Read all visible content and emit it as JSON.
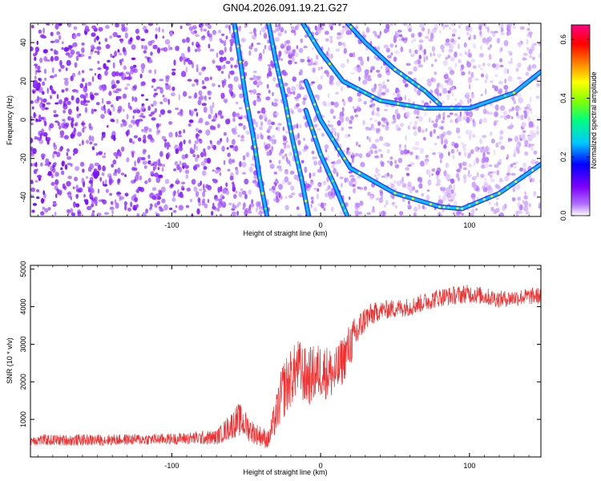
{
  "title": "GN04.2026.091.19.21.G27",
  "chart_data": [
    {
      "type": "heatmap",
      "title": "GN04.2026.091.19.21.G27",
      "xlabel": "Height of straight line (km)",
      "ylabel": "Frequency (Hz)",
      "xlim": [
        -195,
        148
      ],
      "ylim": [
        -50,
        50
      ],
      "xticks": [
        -100,
        0,
        100
      ],
      "yticks": [
        -40,
        -20,
        0,
        20,
        40
      ],
      "colorbar": {
        "label": "Normalized spectral amplitude",
        "range": [
          0.0,
          0.65
        ],
        "ticks": [
          0.0,
          0.2,
          0.4,
          0.6
        ],
        "colormap": [
          "#ffffff",
          "#7f00ff",
          "#0000ff",
          "#00c8ff",
          "#00ff80",
          "#80ff00",
          "#ffff00",
          "#ff8000",
          "#ff0000",
          "#ff00a0"
        ]
      },
      "tracks": [
        {
          "name": "track-1",
          "points": [
            [
              -58,
              50
            ],
            [
              -54,
              30
            ],
            [
              -50,
              10
            ],
            [
              -45,
              -10
            ],
            [
              -41,
              -30
            ],
            [
              -36,
              -50
            ]
          ]
        },
        {
          "name": "track-2",
          "points": [
            [
              -35,
              50
            ],
            [
              -30,
              30
            ],
            [
              -24,
              10
            ],
            [
              -19,
              -10
            ],
            [
              -13,
              -30
            ],
            [
              -8,
              -50
            ]
          ]
        },
        {
          "name": "track-3",
          "points": [
            [
              -12,
              50
            ],
            [
              0,
              35
            ],
            [
              15,
              20
            ],
            [
              40,
              10
            ],
            [
              70,
              6
            ],
            [
              100,
              6
            ],
            [
              130,
              14
            ],
            [
              148,
              25
            ]
          ]
        },
        {
          "name": "track-4",
          "points": [
            [
              -10,
              20
            ],
            [
              0,
              0
            ],
            [
              20,
              -25
            ],
            [
              50,
              -38
            ],
            [
              80,
              -45
            ],
            [
              95,
              -46
            ],
            [
              120,
              -38
            ],
            [
              148,
              -23
            ]
          ]
        },
        {
          "name": "track-5",
          "points": [
            [
              -10,
              5
            ],
            [
              0,
              -18
            ],
            [
              10,
              -35
            ],
            [
              18,
              -50
            ]
          ]
        },
        {
          "name": "track-6",
          "points": [
            [
              18,
              50
            ],
            [
              30,
              40
            ],
            [
              50,
              26
            ],
            [
              70,
              15
            ],
            [
              80,
              8
            ]
          ]
        }
      ]
    },
    {
      "type": "line",
      "xlabel": "Height of straight line (km)",
      "ylabel": "SNR (10 * v/v)",
      "xlim": [
        -195,
        148
      ],
      "ylim": [
        0,
        5100
      ],
      "xticks": [
        -100,
        0,
        100
      ],
      "yticks": [
        1000,
        2000,
        3000,
        4000,
        5000
      ],
      "color": "#f03030",
      "trend": {
        "x": [
          -195,
          -150,
          -100,
          -70,
          -55,
          -45,
          -35,
          -25,
          -15,
          -10,
          0,
          10,
          20,
          30,
          40,
          60,
          80,
          100,
          120,
          148
        ],
        "mean": [
          450,
          450,
          480,
          520,
          1000,
          650,
          450,
          1800,
          2400,
          2100,
          2300,
          2200,
          3000,
          3700,
          3900,
          4000,
          4250,
          4350,
          4200,
          4300
        ],
        "amplitude": [
          300,
          300,
          300,
          400,
          900,
          600,
          500,
          1600,
          1500,
          1600,
          1500,
          1400,
          1200,
          700,
          500,
          500,
          500,
          500,
          450,
          450
        ]
      }
    }
  ]
}
